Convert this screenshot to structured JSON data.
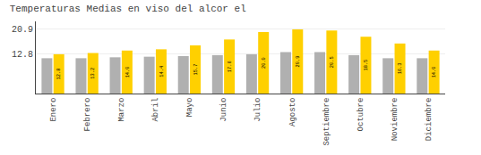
{
  "chart_data": {
    "type": "bar",
    "title": "Temperaturas Medias en viso del alcor el",
    "categories": [
      "Enero",
      "Febrero",
      "Marzo",
      "Abril",
      "Mayo",
      "Junio",
      "Julio",
      "Agosto",
      "Septiembre",
      "Octubre",
      "Noviembre",
      "Diciembre"
    ],
    "series": [
      {
        "color": "#B0B0B0",
        "values": [
          11.5,
          11.5,
          11.8,
          12.0,
          12.2,
          12.5,
          12.8,
          13.5,
          13.5,
          12.5,
          11.5,
          11.5
        ]
      },
      {
        "color": "#FFD000",
        "values": [
          12.8,
          13.2,
          14.0,
          14.4,
          15.7,
          17.6,
          20.0,
          20.9,
          20.5,
          18.5,
          16.3,
          14.0
        ],
        "data_labels": true,
        "value_labels": [
          "12.8",
          "13.2",
          "14.0",
          "14.4",
          "15.7",
          "17.6",
          "20.0",
          "20.9",
          "20.5",
          "18.5",
          "16.3",
          "14.0"
        ]
      }
    ],
    "ylim": [
      0,
      23.5
    ],
    "yticks": [
      12.8,
      20.9
    ],
    "grid": true
  }
}
